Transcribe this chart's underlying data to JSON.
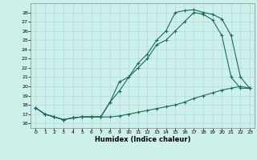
{
  "title": "",
  "xlabel": "Humidex (Indice chaleur)",
  "bg_color": "#cdf0ea",
  "grid_color": "#b0ddd8",
  "line_color": "#1a6b5a",
  "xlim": [
    -0.5,
    23.5
  ],
  "ylim": [
    15.5,
    29.0
  ],
  "yticks": [
    16,
    17,
    18,
    19,
    20,
    21,
    22,
    23,
    24,
    25,
    26,
    27,
    28
  ],
  "xticks": [
    0,
    1,
    2,
    3,
    4,
    5,
    6,
    7,
    8,
    9,
    10,
    11,
    12,
    13,
    14,
    15,
    16,
    17,
    18,
    19,
    20,
    21,
    22,
    23
  ],
  "line1_x": [
    0,
    1,
    2,
    3,
    4,
    5,
    6,
    7,
    8,
    9,
    10,
    11,
    12,
    13,
    14,
    15,
    16,
    17,
    18,
    19,
    20,
    21,
    22,
    23
  ],
  "line1_y": [
    17.7,
    17.0,
    16.7,
    16.4,
    16.6,
    16.7,
    16.7,
    16.7,
    16.7,
    16.8,
    17.0,
    17.2,
    17.4,
    17.6,
    17.8,
    18.0,
    18.3,
    18.7,
    19.0,
    19.3,
    19.6,
    19.8,
    20.0,
    19.8
  ],
  "line2_x": [
    0,
    1,
    2,
    3,
    4,
    5,
    6,
    7,
    8,
    9,
    10,
    11,
    12,
    13,
    14,
    15,
    16,
    17,
    18,
    19,
    20,
    21,
    22,
    23
  ],
  "line2_y": [
    17.7,
    17.0,
    16.7,
    16.4,
    16.6,
    16.7,
    16.7,
    16.7,
    18.3,
    19.5,
    21.0,
    22.0,
    23.0,
    24.5,
    25.0,
    26.0,
    27.0,
    28.0,
    27.8,
    27.2,
    25.5,
    21.0,
    19.8,
    19.8
  ],
  "line3_x": [
    0,
    1,
    2,
    3,
    4,
    5,
    6,
    7,
    8,
    9,
    10,
    11,
    12,
    13,
    14,
    15,
    16,
    17,
    18,
    19,
    20,
    21,
    22,
    23
  ],
  "line3_y": [
    17.7,
    17.0,
    16.7,
    16.4,
    16.6,
    16.7,
    16.7,
    16.7,
    18.3,
    20.5,
    21.0,
    22.5,
    23.5,
    25.0,
    26.0,
    28.0,
    28.2,
    28.3,
    28.0,
    27.8,
    27.3,
    25.5,
    21.0,
    19.8
  ]
}
